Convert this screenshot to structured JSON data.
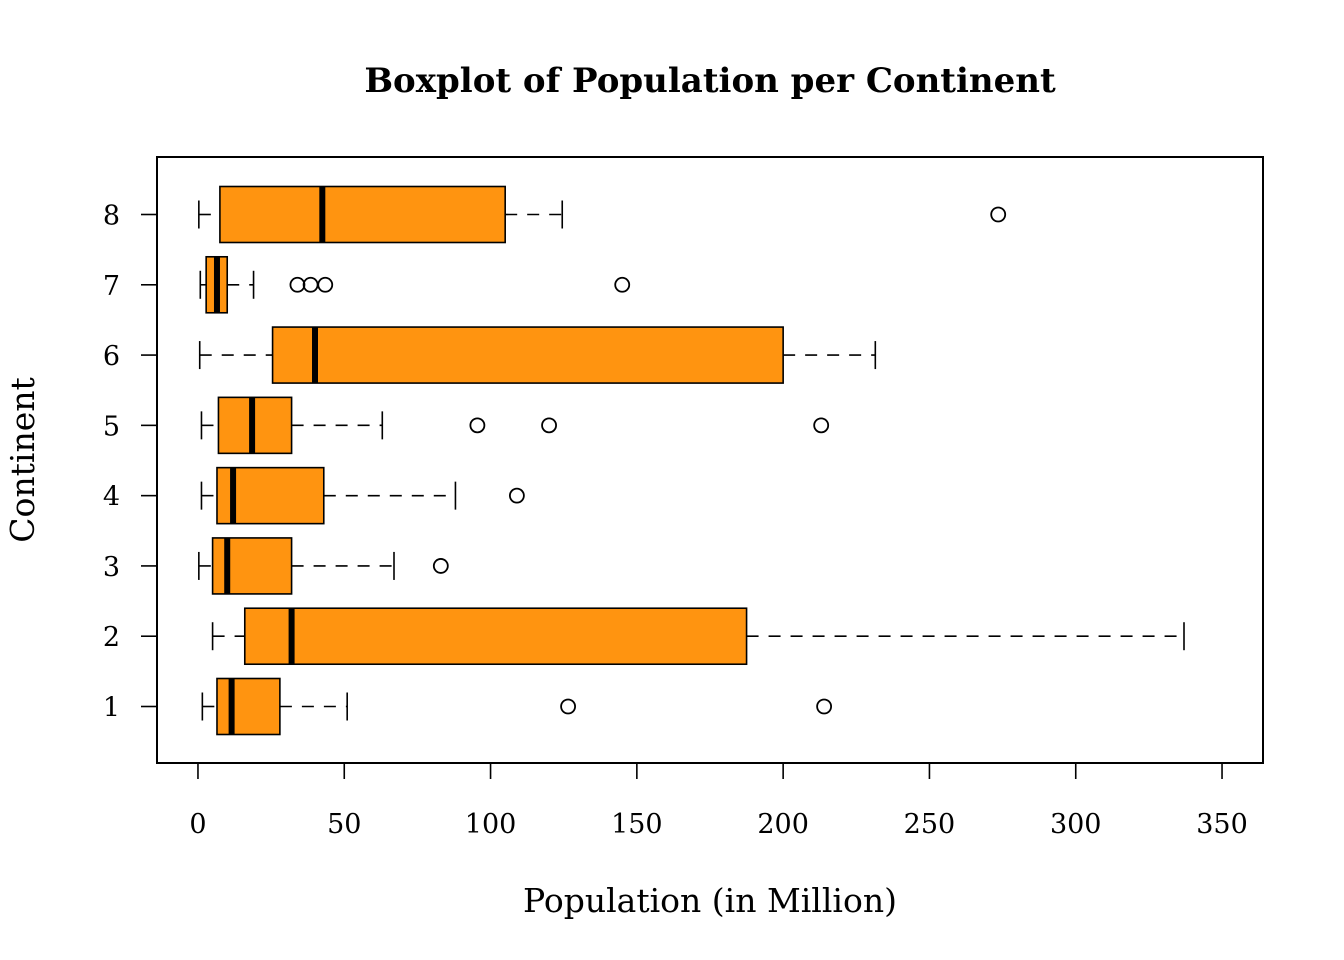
{
  "chart_data": {
    "type": "boxplot",
    "orientation": "horizontal",
    "title": "Boxplot of Population per Continent",
    "xlabel": "Population (in Million)",
    "ylabel": "Continent",
    "xlim": [
      -14,
      364
    ],
    "x_ticks": [
      0,
      50,
      100,
      150,
      200,
      250,
      300,
      350
    ],
    "x_tick_labels": [
      "0",
      "50",
      "100",
      "150",
      "200",
      "250",
      "300",
      "350"
    ],
    "categories": [
      "1",
      "2",
      "3",
      "4",
      "5",
      "6",
      "7",
      "8"
    ],
    "box_color": "#FF9410",
    "boxes": [
      {
        "category": "1",
        "min": 1.5,
        "q1": 6.5,
        "median": 11.5,
        "q3": 28,
        "max": 51,
        "outliers": [
          126.5,
          214
        ]
      },
      {
        "category": "2",
        "min": 5,
        "q1": 16,
        "median": 32,
        "q3": 187.5,
        "max": 337,
        "outliers": []
      },
      {
        "category": "3",
        "min": 0.3,
        "q1": 5,
        "median": 10,
        "q3": 32,
        "max": 67,
        "outliers": [
          83
        ]
      },
      {
        "category": "4",
        "min": 1.2,
        "q1": 6.5,
        "median": 12,
        "q3": 43,
        "max": 88,
        "outliers": [
          109
        ]
      },
      {
        "category": "5",
        "min": 1.2,
        "q1": 7,
        "median": 18.5,
        "q3": 32,
        "max": 63,
        "outliers": [
          95.5,
          120,
          213
        ]
      },
      {
        "category": "6",
        "min": 0.6,
        "q1": 25.5,
        "median": 40,
        "q3": 200,
        "max": 231.5,
        "outliers": []
      },
      {
        "category": "7",
        "min": 0.8,
        "q1": 2.8,
        "median": 6.5,
        "q3": 10,
        "max": 19,
        "outliers": [
          34,
          38.5,
          43.5,
          145
        ]
      },
      {
        "category": "8",
        "min": 0.3,
        "q1": 7.5,
        "median": 42.5,
        "q3": 105,
        "max": 124.5,
        "outliers": [
          273.5
        ]
      }
    ]
  }
}
